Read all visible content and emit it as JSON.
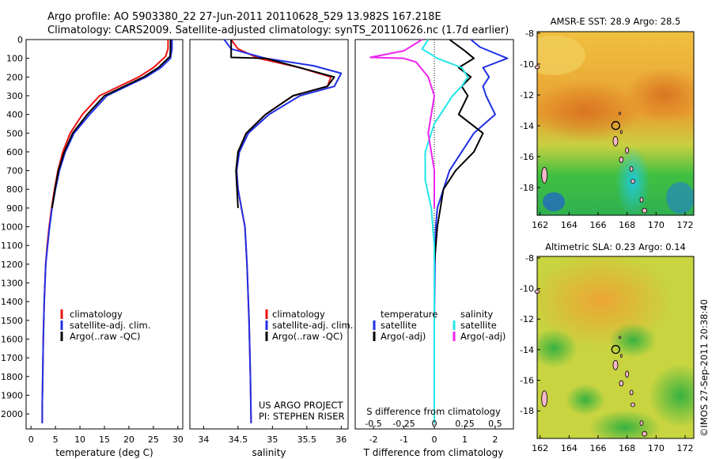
{
  "header": {
    "line1": "Argo profile: AO 5903380_22 27-Jun-2011 20110628_529 13.982S 167.218E",
    "line2": "Climatology: CARS2009. Satellite-adjusted climatology: synTS_20110626.nc (1.7d earlier)"
  },
  "colors": {
    "climatology": "#ee1111",
    "satellite": "#1f2fe6",
    "argo": "#000000",
    "sal_satellite": "#22e6e6",
    "sal_argo": "#ee22ee"
  },
  "panels": {
    "temperature": {
      "xlabel": "temperature (deg C)",
      "legend": [
        "climatology",
        "satellite-adj. clim.",
        "Argo(..raw -QC)"
      ]
    },
    "salinity": {
      "xlabel": "salinity",
      "legend": [
        "climatology",
        "satellite-adj. clim.",
        "Argo(..raw -QC)"
      ],
      "credit1": "US ARGO PROJECT",
      "credit2": "PI: STEPHEN RISER"
    },
    "difference": {
      "legend_head_t": "temperature",
      "legend_head_s": "salinity",
      "legend_t": [
        "satellite",
        "Argo(-adj)"
      ],
      "legend_s": [
        "satellite",
        "Argo(-adj)"
      ],
      "top_label": "S difference from climatology",
      "bottom_label": "T difference from climatology"
    },
    "sst_map": {
      "title": "AMSR-E SST: 28.9  Argo: 28.5"
    },
    "sla_map": {
      "title": "Altimetric SLA: 0.23  Argo: 0.14"
    }
  },
  "footer": {
    "credit": "©IMOS 27-Sep-2011 20:38:40"
  },
  "chart_data": [
    {
      "type": "line",
      "xlabel": "temperature (deg C)",
      "ylabel": "",
      "xlim": [
        -1,
        31
      ],
      "ylim": [
        2080,
        0
      ],
      "x_ticks": [
        0,
        5,
        10,
        15,
        20,
        25,
        30
      ],
      "y_ticks": [
        0,
        100,
        200,
        300,
        400,
        500,
        600,
        700,
        800,
        900,
        1000,
        1100,
        1200,
        1300,
        1400,
        1500,
        1600,
        1700,
        1800,
        1900,
        2000
      ],
      "series": [
        {
          "name": "climatology",
          "color": "#ee1111",
          "x": [
            28.0,
            28.0,
            27.5,
            25,
            22,
            18,
            14,
            10.5,
            8,
            6.5,
            5.5,
            4.8,
            4.2,
            3.7,
            3.3,
            3.0,
            2.7,
            2.5,
            2.4,
            2.3,
            2.3
          ],
          "y": [
            0,
            50,
            90,
            150,
            200,
            250,
            300,
            400,
            500,
            600,
            700,
            800,
            900,
            1000,
            1100,
            1200,
            1400,
            1600,
            1800,
            1950,
            2050
          ]
        },
        {
          "name": "satellite-adj. clim.",
          "color": "#1f2fe6",
          "x": [
            28.8,
            28.8,
            28.5,
            26.5,
            23.5,
            19.5,
            15.5,
            12,
            8.8,
            7,
            5.8,
            5,
            4.3,
            3.8,
            3.4,
            3.0,
            2.7,
            2.5,
            2.4,
            2.3,
            2.3
          ],
          "y": [
            0,
            50,
            100,
            150,
            200,
            250,
            300,
            400,
            500,
            600,
            700,
            800,
            900,
            1000,
            1100,
            1200,
            1400,
            1600,
            1800,
            1950,
            2050
          ]
        },
        {
          "name": "Argo(..raw -QC)",
          "color": "#000000",
          "x": [
            28.5,
            28.5,
            28.4,
            26,
            23,
            19,
            15,
            11.5,
            8.5,
            6.8,
            5.6,
            4.9,
            4.3
          ],
          "y": [
            0,
            50,
            90,
            150,
            200,
            250,
            300,
            400,
            500,
            600,
            700,
            800,
            900
          ]
        }
      ]
    },
    {
      "type": "line",
      "xlabel": "salinity",
      "ylabel": "",
      "xlim": [
        33.8,
        36.1
      ],
      "ylim": [
        2080,
        0
      ],
      "x_ticks": [
        34,
        34.5,
        35,
        35.5,
        36
      ],
      "series": [
        {
          "name": "climatology",
          "color": "#ee1111",
          "x": [
            34.4,
            34.5,
            34.8,
            35.4,
            35.85,
            35.8,
            35.3,
            34.9,
            34.62,
            34.5,
            34.48,
            34.5,
            34.55,
            34.6,
            34.63,
            34.66,
            34.68,
            34.69
          ],
          "y": [
            0,
            50,
            100,
            150,
            200,
            250,
            300,
            400,
            500,
            600,
            700,
            800,
            900,
            1000,
            1200,
            1500,
            1800,
            2050
          ]
        },
        {
          "name": "satellite-adj. clim.",
          "color": "#1f2fe6",
          "x": [
            34.3,
            34.4,
            34.9,
            35.6,
            36.0,
            35.9,
            35.4,
            34.95,
            34.65,
            34.52,
            34.48,
            34.5,
            34.55,
            34.6,
            34.63,
            34.66,
            34.68,
            34.69
          ],
          "y": [
            0,
            50,
            100,
            140,
            180,
            250,
            300,
            400,
            500,
            600,
            700,
            800,
            900,
            1000,
            1200,
            1500,
            1800,
            2050
          ]
        },
        {
          "name": "Argo(..raw -QC)",
          "color": "#000000",
          "x": [
            34.4,
            34.4,
            34.9,
            35.4,
            35.9,
            35.8,
            35.3,
            34.9,
            34.62,
            34.5,
            34.47,
            34.5
          ],
          "y": [
            0,
            95,
            100,
            150,
            200,
            250,
            300,
            400,
            500,
            600,
            700,
            900
          ]
        }
      ]
    },
    {
      "type": "line",
      "xlabel": "T difference from climatology",
      "ylabel": "",
      "top_xlabel": "S difference from climatology",
      "xlim": [
        -2.6,
        2.6
      ],
      "ylim": [
        2080,
        0
      ],
      "x_ticks_bottom": [
        -2,
        -1,
        0,
        1,
        2
      ],
      "x_ticks_top": [
        -0.5,
        -0.25,
        0,
        0.25,
        0.5
      ],
      "series": [
        {
          "name": "temperature satellite",
          "color": "#1f2fe6",
          "x": [
            1.2,
            1.5,
            2.4,
            1.6,
            1.8,
            1.6,
            1.7,
            2.0,
            1.3,
            0.9,
            0.5,
            0.3,
            0.1,
            0.05,
            0.02,
            0.0
          ],
          "y": [
            0,
            40,
            100,
            150,
            200,
            250,
            300,
            400,
            500,
            600,
            700,
            800,
            900,
            1000,
            1200,
            1500
          ]
        },
        {
          "name": "temperature Argo(-adj)",
          "color": "#000000",
          "x": [
            0.5,
            1.0,
            1.3,
            0.8,
            1.2,
            0.9,
            1.1,
            0.8,
            1.6,
            1.3,
            0.7,
            0.3,
            0.2,
            0.1,
            0.0
          ],
          "y": [
            0,
            60,
            100,
            150,
            200,
            250,
            300,
            400,
            500,
            600,
            700,
            800,
            900,
            1000,
            1200
          ]
        },
        {
          "name": "salinity satellite",
          "color": "#22e6e6",
          "x": [
            -0.2,
            -0.4,
            0.1,
            0.9,
            1.1,
            0.9,
            0.6,
            0.0,
            -0.3,
            -0.3,
            -0.1,
            0.0,
            0.0,
            0.0
          ],
          "y": [
            0,
            50,
            100,
            150,
            200,
            250,
            300,
            450,
            600,
            750,
            900,
            1100,
            1500,
            2050
          ]
        },
        {
          "name": "salinity Argo(-adj)",
          "color": "#ee22ee",
          "x": [
            -0.4,
            -1.0,
            -2.1,
            -1.0,
            -0.6,
            -0.2,
            0.0,
            -0.2,
            0.0,
            0.0
          ],
          "y": [
            0,
            60,
            95,
            100,
            120,
            200,
            300,
            500,
            700,
            900
          ]
        }
      ]
    }
  ],
  "maps": {
    "x_ticks": [
      162,
      164,
      166,
      168,
      170,
      172
    ],
    "y_ticks": [
      -8,
      -10,
      -12,
      -14,
      -16,
      -18
    ],
    "xlim": [
      161.8,
      172.6
    ],
    "ylim": [
      -19.8,
      -7.9
    ],
    "argo_position": {
      "lon": 167.218,
      "lat": -13.982
    }
  }
}
